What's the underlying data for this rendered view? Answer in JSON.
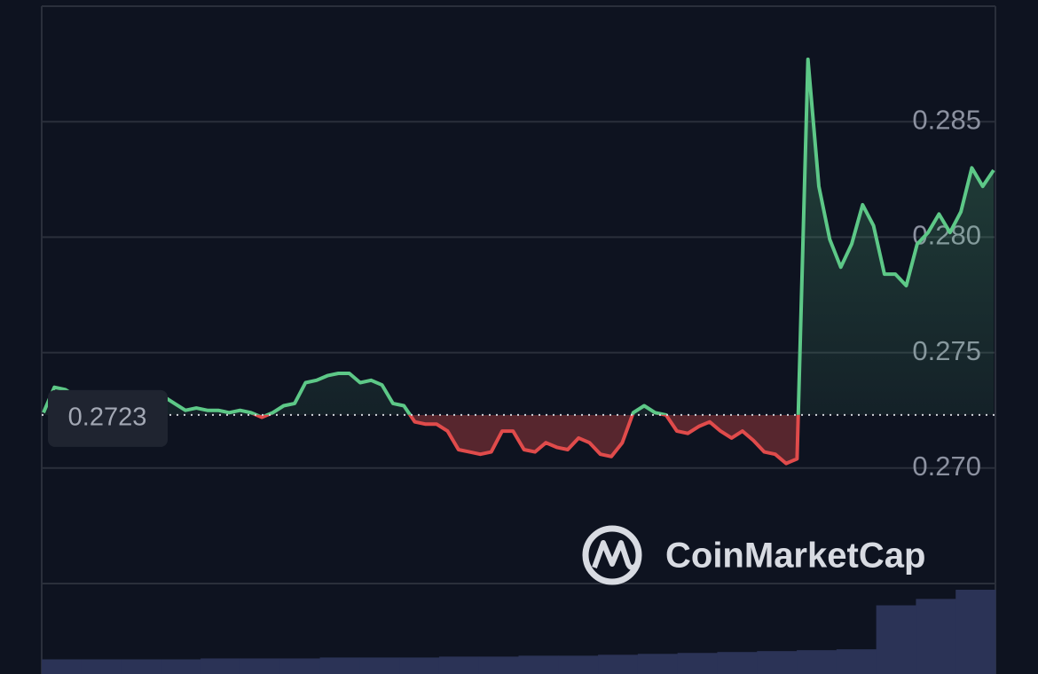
{
  "chart_data": {
    "type": "line",
    "values": [
      0.2724,
      0.2735,
      0.2734,
      0.2731,
      0.273,
      0.2729,
      0.2728,
      0.2729,
      0.2731,
      0.273,
      0.273,
      0.2731,
      0.2728,
      0.2725,
      0.2726,
      0.2725,
      0.2725,
      0.2724,
      0.2725,
      0.2724,
      0.2722,
      0.2724,
      0.2727,
      0.2728,
      0.2737,
      0.2738,
      0.274,
      0.2741,
      0.2741,
      0.2737,
      0.2738,
      0.2736,
      0.2728,
      0.2727,
      0.272,
      0.2719,
      0.2719,
      0.2716,
      0.2708,
      0.2707,
      0.2706,
      0.2707,
      0.2716,
      0.2716,
      0.2708,
      0.2707,
      0.2711,
      0.2709,
      0.2708,
      0.2713,
      0.2711,
      0.2706,
      0.2705,
      0.2711,
      0.2724,
      0.2727,
      0.2724,
      0.2723,
      0.2716,
      0.2715,
      0.2718,
      0.272,
      0.2716,
      0.2713,
      0.2716,
      0.2712,
      0.2707,
      0.2706,
      0.2702,
      0.2704,
      0.2877,
      0.2822,
      0.2799,
      0.2787,
      0.2797,
      0.2814,
      0.2805,
      0.2784,
      0.2784,
      0.2779,
      0.2797,
      0.2802,
      0.281,
      0.2802,
      0.2811,
      0.283,
      0.2822,
      0.2829
    ],
    "up_color": "#5dc887",
    "down_color": "#e04b4b",
    "baseline": 0.2723,
    "ylim": [
      0.265,
      0.29
    ],
    "yticks": [
      {
        "value": 0.27,
        "label": "0.270"
      },
      0.275,
      {
        "value": 0.28,
        "label": "0.280"
      },
      0.285
    ],
    "grid": true,
    "watermark": "CoinMarketCap",
    "volume": {
      "color": "#2b3356",
      "values": [
        16,
        16,
        16,
        16,
        17,
        17,
        17,
        18,
        18,
        18,
        19,
        19,
        20,
        20,
        21,
        22,
        23,
        24,
        25,
        26,
        27,
        75,
        82,
        92
      ]
    }
  }
}
